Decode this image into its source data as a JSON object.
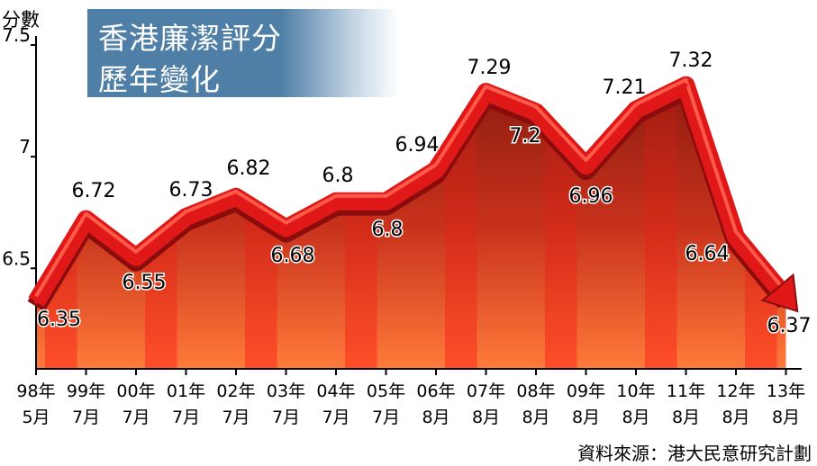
{
  "title": {
    "line1": "香港廉潔評分",
    "line2": "歷年變化"
  },
  "source": "資料來源：港大民意研究計劃",
  "colors": {
    "line": "#e01818",
    "title_bg": "#4f7fa6",
    "area_top": "#8f1c10",
    "area_bottom": "#ff7a3a"
  },
  "chart_data": {
    "type": "line",
    "ylabel": "分數",
    "ylim": [
      6.05,
      7.5
    ],
    "yticks": [
      6.5,
      7,
      7.5
    ],
    "ytick_labels": [
      "6.5",
      "7",
      "7.5"
    ],
    "categories": [
      [
        "98年",
        "5月"
      ],
      [
        "99年",
        "7月"
      ],
      [
        "00年",
        "7月"
      ],
      [
        "01年",
        "7月"
      ],
      [
        "02年",
        "7月"
      ],
      [
        "03年",
        "7月"
      ],
      [
        "04年",
        "7月"
      ],
      [
        "05年",
        "7月"
      ],
      [
        "06年",
        "8月"
      ],
      [
        "07年",
        "8月"
      ],
      [
        "08年",
        "8月"
      ],
      [
        "09年",
        "8月"
      ],
      [
        "10年",
        "8月"
      ],
      [
        "11年",
        "8月"
      ],
      [
        "12年",
        "8月"
      ],
      [
        "13年",
        "8月"
      ]
    ],
    "values": [
      6.35,
      6.72,
      6.55,
      6.73,
      6.82,
      6.68,
      6.8,
      6.8,
      6.94,
      7.29,
      7.2,
      6.96,
      7.21,
      7.32,
      6.64,
      6.37
    ],
    "value_labels": [
      "6.35",
      "6.72",
      "6.55",
      "6.73",
      "6.82",
      "6.68",
      "6.8",
      "6.8",
      "6.94",
      "7.29",
      "7.2",
      "6.96",
      "7.21",
      "7.32",
      "6.64",
      "6.37"
    ],
    "grid": false,
    "legend": "none"
  }
}
